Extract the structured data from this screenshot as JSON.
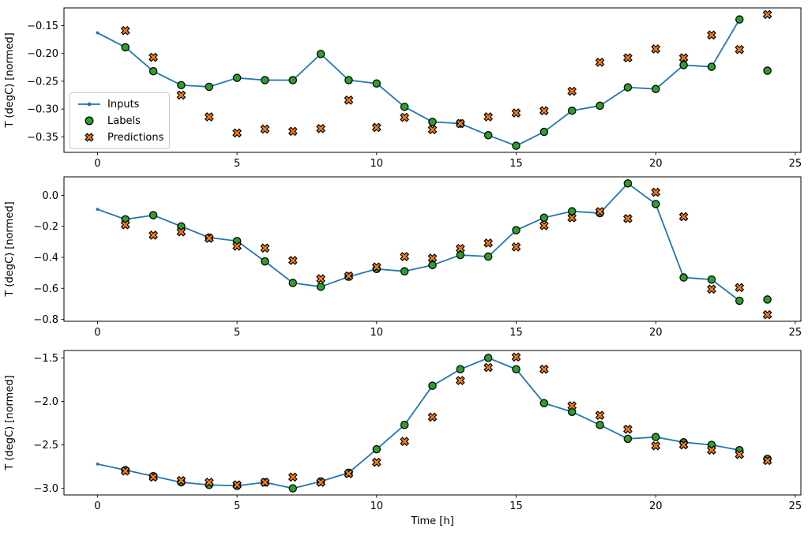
{
  "figure": {
    "xlabel": "Time [h]",
    "ylabel": "T (degC) [normed]",
    "background": "#ffffff",
    "colors": {
      "inputs": "#1f77b4",
      "labels": "#2ca02c",
      "predictions": "#ff7f0e",
      "marker_edge": "#000000",
      "spine": "#000000",
      "text": "#000000"
    },
    "legend": {
      "position": "upper-left-of-first-subplot",
      "items": [
        {
          "label": "Inputs",
          "kind": "line-dot"
        },
        {
          "label": "Labels",
          "kind": "circle"
        },
        {
          "label": "Predictions",
          "kind": "x"
        }
      ]
    }
  },
  "chart_data": [
    {
      "type": "line",
      "title": "",
      "xlabel": "",
      "ylabel": "T (degC) [normed]",
      "xlim": [
        -1.2,
        25.2
      ],
      "ylim": [
        -0.3778,
        -0.1182
      ],
      "grid": false,
      "xticks": [
        0,
        5,
        10,
        15,
        20,
        25
      ],
      "xtick_labels": [
        "0",
        "5",
        "10",
        "15",
        "20",
        "25"
      ],
      "yticks": [
        -0.15,
        -0.2,
        -0.25,
        -0.3,
        -0.35
      ],
      "ytick_labels": [
        "−0.15",
        "−0.20",
        "−0.25",
        "−0.30",
        "−0.35"
      ],
      "series": [
        {
          "name": "Inputs",
          "kind": "line",
          "color_key": "inputs",
          "x": [
            0,
            1,
            2,
            3,
            4,
            5,
            6,
            7,
            8,
            9,
            10,
            11,
            12,
            13,
            14,
            15,
            16,
            17,
            18,
            19,
            20,
            21,
            22,
            23
          ],
          "y": [
            -0.163,
            -0.189,
            -0.232,
            -0.257,
            -0.26,
            -0.244,
            -0.248,
            -0.248,
            -0.201,
            -0.248,
            -0.254,
            -0.296,
            -0.323,
            -0.326,
            -0.347,
            -0.366,
            -0.341,
            -0.303,
            -0.294,
            -0.261,
            -0.264,
            -0.221,
            -0.224,
            -0.139
          ]
        },
        {
          "name": "Labels",
          "kind": "scatter-circle",
          "color_key": "labels",
          "x": [
            1,
            2,
            3,
            4,
            5,
            6,
            7,
            8,
            9,
            10,
            11,
            12,
            13,
            14,
            15,
            16,
            17,
            18,
            19,
            20,
            21,
            22,
            23,
            24
          ],
          "y": [
            -0.189,
            -0.232,
            -0.257,
            -0.26,
            -0.244,
            -0.248,
            -0.248,
            -0.201,
            -0.248,
            -0.254,
            -0.296,
            -0.323,
            -0.326,
            -0.347,
            -0.366,
            -0.341,
            -0.303,
            -0.294,
            -0.261,
            -0.264,
            -0.221,
            -0.224,
            -0.139,
            -0.231
          ]
        },
        {
          "name": "Predictions",
          "kind": "scatter-x",
          "color_key": "predictions",
          "x": [
            1,
            2,
            3,
            4,
            5,
            6,
            7,
            8,
            9,
            10,
            11,
            12,
            13,
            14,
            15,
            16,
            17,
            18,
            19,
            20,
            21,
            22,
            23,
            24
          ],
          "y": [
            -0.159,
            -0.207,
            -0.275,
            -0.314,
            -0.343,
            -0.336,
            -0.34,
            -0.335,
            -0.284,
            -0.333,
            -0.315,
            -0.337,
            -0.326,
            -0.314,
            -0.307,
            -0.303,
            -0.268,
            -0.216,
            -0.208,
            -0.192,
            -0.208,
            -0.167,
            -0.193,
            -0.13
          ]
        }
      ]
    },
    {
      "type": "line",
      "title": "",
      "xlabel": "",
      "ylabel": "T (degC) [normed]",
      "xlim": [
        -1.2,
        25.2
      ],
      "ylim": [
        -0.8124,
        0.1194
      ],
      "grid": false,
      "xticks": [
        0,
        5,
        10,
        15,
        20,
        25
      ],
      "xtick_labels": [
        "0",
        "5",
        "10",
        "15",
        "20",
        "25"
      ],
      "yticks": [
        0.0,
        -0.2,
        -0.4,
        -0.6,
        -0.8
      ],
      "ytick_labels": [
        "0.0",
        "−0.2",
        "−0.4",
        "−0.6",
        "−0.8"
      ],
      "series": [
        {
          "name": "Inputs",
          "kind": "line",
          "color_key": "inputs",
          "x": [
            0,
            1,
            2,
            3,
            4,
            5,
            6,
            7,
            8,
            9,
            10,
            11,
            12,
            13,
            14,
            15,
            16,
            17,
            18,
            19,
            20,
            21,
            22,
            23
          ],
          "y": [
            -0.09,
            -0.155,
            -0.128,
            -0.2,
            -0.272,
            -0.295,
            -0.426,
            -0.565,
            -0.59,
            -0.525,
            -0.475,
            -0.49,
            -0.45,
            -0.385,
            -0.395,
            -0.225,
            -0.144,
            -0.103,
            -0.115,
            0.077,
            -0.056,
            -0.53,
            -0.543,
            -0.68
          ]
        },
        {
          "name": "Labels",
          "kind": "scatter-circle",
          "color_key": "labels",
          "x": [
            1,
            2,
            3,
            4,
            5,
            6,
            7,
            8,
            9,
            10,
            11,
            12,
            13,
            14,
            15,
            16,
            17,
            18,
            19,
            20,
            21,
            22,
            23,
            24
          ],
          "y": [
            -0.155,
            -0.128,
            -0.2,
            -0.272,
            -0.295,
            -0.426,
            -0.565,
            -0.59,
            -0.525,
            -0.475,
            -0.49,
            -0.45,
            -0.385,
            -0.395,
            -0.225,
            -0.144,
            -0.103,
            -0.115,
            0.077,
            -0.056,
            -0.53,
            -0.543,
            -0.68,
            -0.672
          ]
        },
        {
          "name": "Predictions",
          "kind": "scatter-x",
          "color_key": "predictions",
          "x": [
            1,
            2,
            3,
            4,
            5,
            6,
            7,
            8,
            9,
            10,
            11,
            12,
            13,
            14,
            15,
            16,
            17,
            18,
            19,
            20,
            21,
            22,
            23,
            24
          ],
          "y": [
            -0.19,
            -0.257,
            -0.236,
            -0.277,
            -0.328,
            -0.34,
            -0.42,
            -0.538,
            -0.52,
            -0.462,
            -0.395,
            -0.405,
            -0.343,
            -0.308,
            -0.333,
            -0.195,
            -0.145,
            -0.105,
            -0.15,
            0.02,
            -0.138,
            -0.605,
            -0.595,
            -0.77
          ]
        }
      ]
    },
    {
      "type": "line",
      "title": "",
      "xlabel": "Time [h]",
      "ylabel": "T (degC) [normed]",
      "xlim": [
        -1.2,
        25.2
      ],
      "ylim": [
        -3.0755,
        -1.4145
      ],
      "grid": false,
      "xticks": [
        0,
        5,
        10,
        15,
        20,
        25
      ],
      "xtick_labels": [
        "0",
        "5",
        "10",
        "15",
        "20",
        "25"
      ],
      "yticks": [
        -1.5,
        -2.0,
        -2.5,
        -3.0
      ],
      "ytick_labels": [
        "−1.5",
        "−2.0",
        "−2.5",
        "−3.0"
      ],
      "series": [
        {
          "name": "Inputs",
          "kind": "line",
          "color_key": "inputs",
          "x": [
            0,
            1,
            2,
            3,
            4,
            5,
            6,
            7,
            8,
            9,
            10,
            11,
            12,
            13,
            14,
            15,
            16,
            17,
            18,
            19,
            20,
            21,
            22,
            23
          ],
          "y": [
            -2.72,
            -2.79,
            -2.86,
            -2.93,
            -2.96,
            -2.97,
            -2.93,
            -3.0,
            -2.92,
            -2.82,
            -2.55,
            -2.27,
            -1.82,
            -1.63,
            -1.5,
            -1.63,
            -2.02,
            -2.12,
            -2.27,
            -2.43,
            -2.41,
            -2.47,
            -2.5,
            -2.56
          ]
        },
        {
          "name": "Labels",
          "kind": "scatter-circle",
          "color_key": "labels",
          "x": [
            1,
            2,
            3,
            4,
            5,
            6,
            7,
            8,
            9,
            10,
            11,
            12,
            13,
            14,
            15,
            16,
            17,
            18,
            19,
            20,
            21,
            22,
            23,
            24
          ],
          "y": [
            -2.79,
            -2.86,
            -2.93,
            -2.96,
            -2.97,
            -2.93,
            -3.0,
            -2.92,
            -2.82,
            -2.55,
            -2.27,
            -1.82,
            -1.63,
            -1.5,
            -1.63,
            -2.02,
            -2.12,
            -2.27,
            -2.43,
            -2.41,
            -2.47,
            -2.5,
            -2.56,
            -2.66
          ]
        },
        {
          "name": "Predictions",
          "kind": "scatter-x",
          "color_key": "predictions",
          "x": [
            1,
            2,
            3,
            4,
            5,
            6,
            7,
            8,
            9,
            10,
            11,
            12,
            13,
            14,
            15,
            16,
            17,
            18,
            19,
            20,
            21,
            22,
            23,
            24
          ],
          "y": [
            -2.8,
            -2.87,
            -2.91,
            -2.93,
            -2.96,
            -2.93,
            -2.87,
            -2.93,
            -2.83,
            -2.7,
            -2.46,
            -2.18,
            -1.76,
            -1.61,
            -1.49,
            -1.63,
            -2.05,
            -2.16,
            -2.32,
            -2.51,
            -2.5,
            -2.56,
            -2.61,
            -2.68
          ]
        }
      ]
    }
  ]
}
